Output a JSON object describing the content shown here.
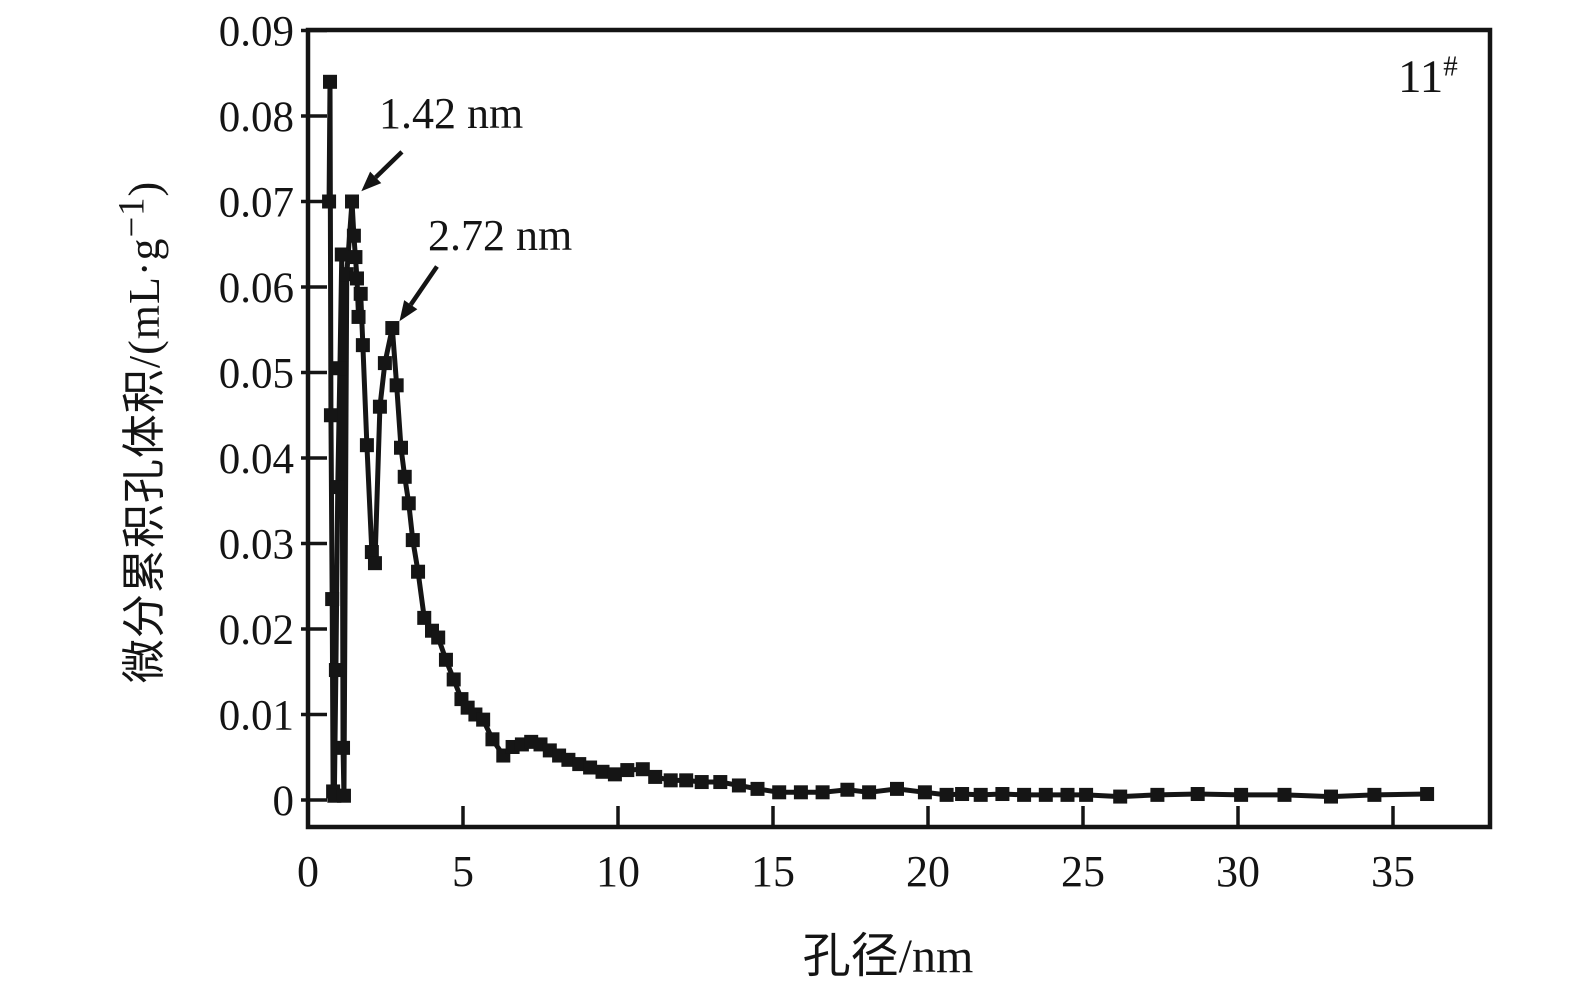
{
  "figure": {
    "corner_label_base": "11",
    "corner_label_sup": "#",
    "ylabel_cjk": "微分累积孔体积",
    "ylabel_unit_open": "/(mL·g",
    "ylabel_unit_sup": "−1",
    "ylabel_unit_close": ")"
  },
  "chart_data": {
    "type": "line",
    "marker": "square",
    "line_color": "#151515",
    "marker_color": "#151515",
    "axis_color": "#141414",
    "background": "#ffffff",
    "title": "",
    "xlabel": "孔径/nm",
    "ylabel": "微分累积孔体积/(mL·g⁻¹)",
    "sample_label": "11#",
    "xlim": [
      0,
      38.1
    ],
    "ylim": [
      -0.0031,
      0.09
    ],
    "grid": false,
    "legend": "none",
    "x_ticks": [
      0,
      5,
      10,
      15,
      20,
      25,
      30,
      35
    ],
    "y_ticks": [
      0,
      0.01,
      0.02,
      0.03,
      0.04,
      0.05,
      0.06,
      0.07,
      0.08,
      0.09
    ],
    "y_tick_labels": [
      "0",
      "0.01",
      "0.02",
      "0.03",
      "0.04",
      "0.05",
      "0.06",
      "0.07",
      "0.08",
      "0.09"
    ],
    "annotations": [
      {
        "text": "1.42 nm",
        "arrow_from": [
          3.03,
          0.0758
        ],
        "arrow_to": [
          1.72,
          0.0712
        ]
      },
      {
        "text": "2.72 nm",
        "arrow_from": [
          4.16,
          0.0624
        ],
        "arrow_to": [
          2.95,
          0.056
        ]
      }
    ],
    "series": [
      {
        "name": "11# differential cumulative pore volume",
        "points": [
          [
            0.68,
            0.07
          ],
          [
            0.71,
            0.084
          ],
          [
            0.74,
            0.045
          ],
          [
            0.78,
            0.0235
          ],
          [
            0.81,
            0.001
          ],
          [
            0.85,
            0.0005
          ],
          [
            0.9,
            0.0152
          ],
          [
            0.96,
            0.0366
          ],
          [
            1.03,
            0.0505
          ],
          [
            1.09,
            0.0638
          ],
          [
            1.13,
            0.0061
          ],
          [
            1.16,
            0.0005
          ],
          [
            1.25,
            0.0615
          ],
          [
            1.42,
            0.07
          ],
          [
            1.48,
            0.066
          ],
          [
            1.53,
            0.0635
          ],
          [
            1.58,
            0.061
          ],
          [
            1.63,
            0.0565
          ],
          [
            1.7,
            0.0592
          ],
          [
            1.77,
            0.0532
          ],
          [
            1.9,
            0.0415
          ],
          [
            2.06,
            0.029
          ],
          [
            2.16,
            0.0277
          ],
          [
            2.32,
            0.046
          ],
          [
            2.48,
            0.0511
          ],
          [
            2.72,
            0.0552
          ],
          [
            2.86,
            0.0485
          ],
          [
            3.0,
            0.0412
          ],
          [
            3.12,
            0.0378
          ],
          [
            3.25,
            0.0347
          ],
          [
            3.38,
            0.0304
          ],
          [
            3.55,
            0.0267
          ],
          [
            3.75,
            0.0213
          ],
          [
            4.0,
            0.0198
          ],
          [
            4.2,
            0.019
          ],
          [
            4.45,
            0.0164
          ],
          [
            4.7,
            0.0141
          ],
          [
            4.95,
            0.0118
          ],
          [
            5.15,
            0.0108
          ],
          [
            5.4,
            0.01
          ],
          [
            5.65,
            0.0094
          ],
          [
            5.95,
            0.0071
          ],
          [
            6.3,
            0.0052
          ],
          [
            6.6,
            0.0062
          ],
          [
            6.9,
            0.0065
          ],
          [
            7.2,
            0.0068
          ],
          [
            7.5,
            0.0065
          ],
          [
            7.8,
            0.0058
          ],
          [
            8.1,
            0.0052
          ],
          [
            8.4,
            0.0047
          ],
          [
            8.75,
            0.0042
          ],
          [
            9.1,
            0.0038
          ],
          [
            9.5,
            0.0033
          ],
          [
            9.9,
            0.003
          ],
          [
            10.3,
            0.0035
          ],
          [
            10.8,
            0.0036
          ],
          [
            11.2,
            0.0027
          ],
          [
            11.7,
            0.0023
          ],
          [
            12.2,
            0.0023
          ],
          [
            12.7,
            0.0021
          ],
          [
            13.3,
            0.0021
          ],
          [
            13.9,
            0.0017
          ],
          [
            14.5,
            0.0013
          ],
          [
            15.2,
            0.0009
          ],
          [
            15.9,
            0.0009
          ],
          [
            16.6,
            0.0009
          ],
          [
            17.4,
            0.0012
          ],
          [
            18.1,
            0.0009
          ],
          [
            19.0,
            0.0013
          ],
          [
            19.9,
            0.0009
          ],
          [
            20.6,
            0.0006
          ],
          [
            21.1,
            0.0007
          ],
          [
            21.7,
            0.0006
          ],
          [
            22.4,
            0.0007
          ],
          [
            23.1,
            0.0006
          ],
          [
            23.8,
            0.0006
          ],
          [
            24.5,
            0.0006
          ],
          [
            25.1,
            0.0006
          ],
          [
            26.2,
            0.0004
          ],
          [
            27.4,
            0.0006
          ],
          [
            28.7,
            0.0007
          ],
          [
            30.1,
            0.0006
          ],
          [
            31.5,
            0.0006
          ],
          [
            33.0,
            0.0004
          ],
          [
            34.4,
            0.0006
          ],
          [
            36.1,
            0.0007
          ]
        ]
      }
    ]
  }
}
